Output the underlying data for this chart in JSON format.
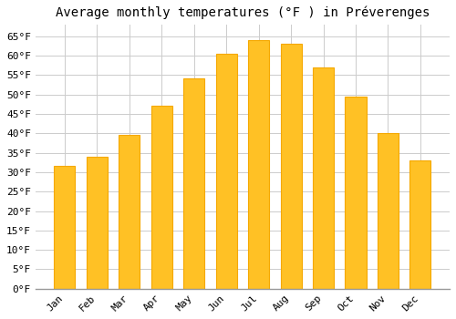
{
  "title": "Average monthly temperatures (°F ) in Préverenges",
  "months": [
    "Jan",
    "Feb",
    "Mar",
    "Apr",
    "May",
    "Jun",
    "Jul",
    "Aug",
    "Sep",
    "Oct",
    "Nov",
    "Dec"
  ],
  "values": [
    31.5,
    34.0,
    39.5,
    47.0,
    54.0,
    60.5,
    64.0,
    63.0,
    57.0,
    49.5,
    40.0,
    33.0
  ],
  "bar_color": "#FFC125",
  "bar_edge_color": "#F5A800",
  "background_color": "#FFFFFF",
  "grid_color": "#CCCCCC",
  "ytick_labels": [
    "0°F",
    "5°F",
    "10°F",
    "15°F",
    "20°F",
    "25°F",
    "30°F",
    "35°F",
    "40°F",
    "45°F",
    "50°F",
    "55°F",
    "60°F",
    "65°F"
  ],
  "ytick_values": [
    0,
    5,
    10,
    15,
    20,
    25,
    30,
    35,
    40,
    45,
    50,
    55,
    60,
    65
  ],
  "ylim": [
    0,
    68
  ],
  "title_fontsize": 10,
  "tick_fontsize": 8,
  "font_family": "monospace"
}
